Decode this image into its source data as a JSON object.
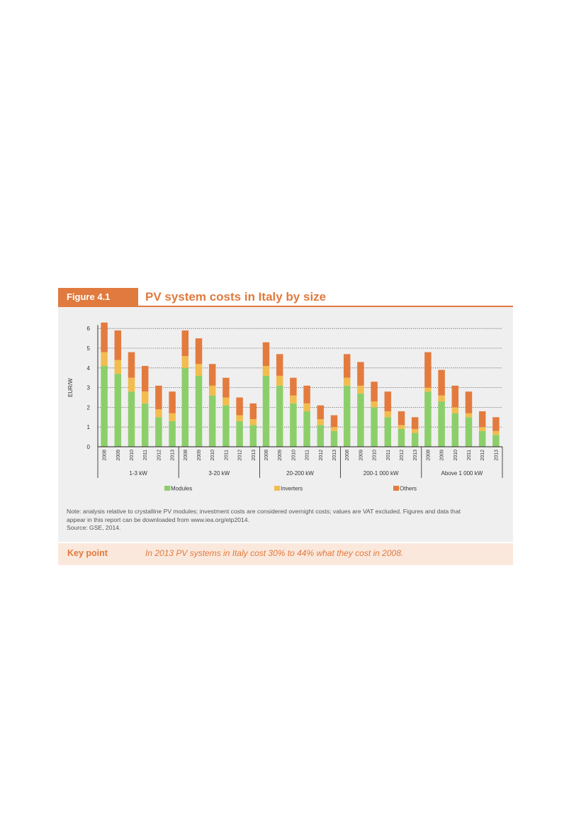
{
  "figure": {
    "label": "Figure 4.1",
    "title": "PV system costs in Italy by size",
    "note_lines": [
      "Note: analysis relative to crystalline PV modules; investment costs are considered overnight costs; values are VAT excluded. Figures and data that",
      "appear in this report can be downloaded from www.iea.org/etp2014.",
      "Source: GSE, 2014."
    ],
    "key_point_label": "Key point",
    "key_point_text": "In 2013 PV systems in Italy cost 30% to 44% what they cost in 2008."
  },
  "chart_data": {
    "type": "bar",
    "stacked": true,
    "ylabel": "EUR/W",
    "xlabel": "",
    "ylim": [
      0,
      6
    ],
    "yticks": [
      0,
      1,
      2,
      3,
      4,
      5,
      6
    ],
    "grid": "dotted horizontal",
    "legend_position": "bottom",
    "groups": [
      "1-3 kW",
      "3-20 kW",
      "20-200 kW",
      "200-1 000 kW",
      "Above 1 000 kW"
    ],
    "years": [
      "2008",
      "2009",
      "2010",
      "2011",
      "2012",
      "2013"
    ],
    "series": [
      {
        "name": "Modules",
        "color": "#8ccf6a",
        "values": [
          [
            4.1,
            3.7,
            2.8,
            2.2,
            1.5,
            1.3
          ],
          [
            4.0,
            3.6,
            2.6,
            2.1,
            1.3,
            1.1
          ],
          [
            3.6,
            3.1,
            2.2,
            1.8,
            1.1,
            0.8
          ],
          [
            3.1,
            2.7,
            2.0,
            1.5,
            0.9,
            0.7
          ],
          [
            2.8,
            2.3,
            1.7,
            1.5,
            0.8,
            0.6
          ]
        ]
      },
      {
        "name": "Inverters",
        "color": "#f2bd4e",
        "values": [
          [
            0.7,
            0.7,
            0.7,
            0.6,
            0.4,
            0.4
          ],
          [
            0.6,
            0.6,
            0.5,
            0.4,
            0.3,
            0.3
          ],
          [
            0.5,
            0.5,
            0.4,
            0.4,
            0.3,
            0.2
          ],
          [
            0.4,
            0.4,
            0.3,
            0.3,
            0.2,
            0.2
          ],
          [
            0.2,
            0.3,
            0.3,
            0.2,
            0.2,
            0.2
          ]
        ]
      },
      {
        "name": "Others",
        "color": "#e37b3f",
        "values": [
          [
            1.5,
            1.5,
            1.3,
            1.3,
            1.2,
            1.1
          ],
          [
            1.3,
            1.3,
            1.1,
            1.0,
            0.9,
            0.8
          ],
          [
            1.2,
            1.1,
            0.9,
            0.9,
            0.7,
            0.6
          ],
          [
            1.2,
            1.2,
            1.0,
            1.0,
            0.7,
            0.6
          ],
          [
            1.8,
            1.3,
            1.1,
            1.1,
            0.8,
            0.7
          ]
        ]
      }
    ]
  }
}
